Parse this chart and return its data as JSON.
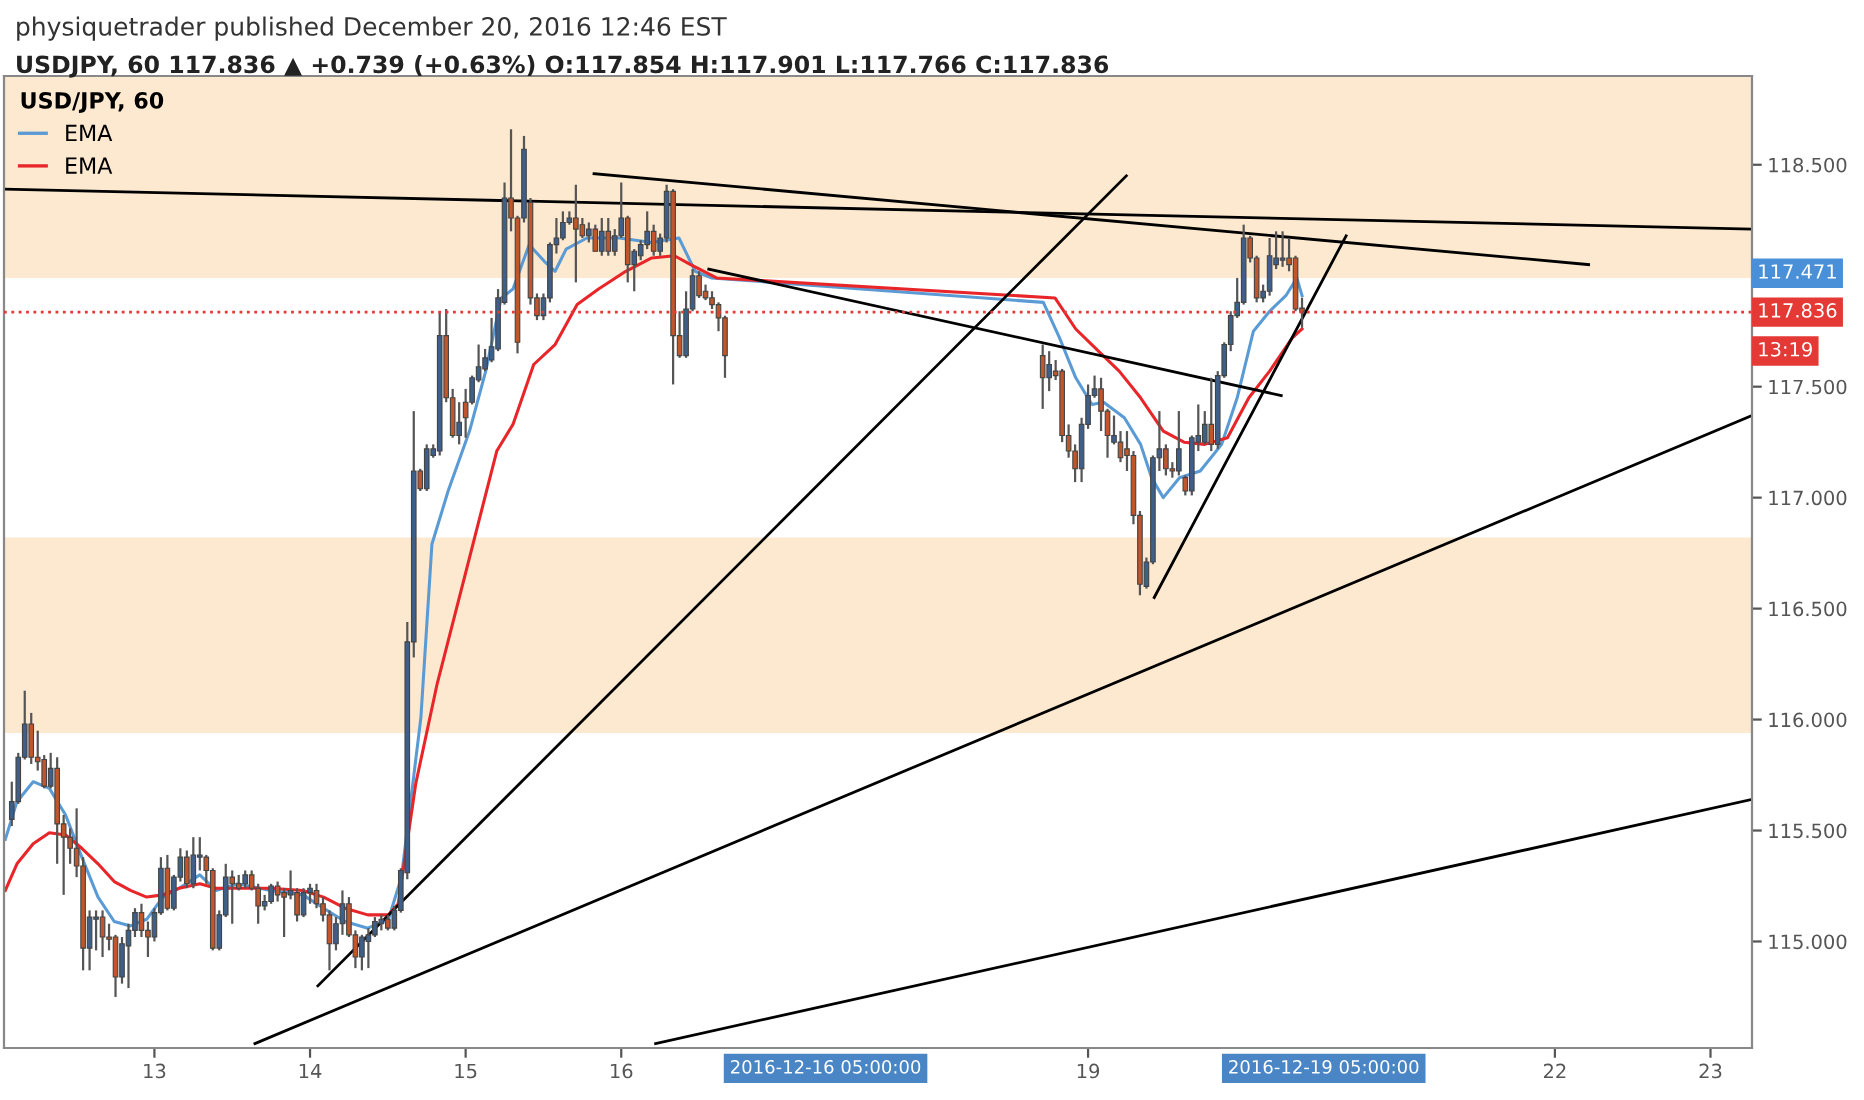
{
  "chart_data": {
    "type": "candlestick",
    "title": "physiquetrader published December 20, 2016 12:46 EST",
    "subtitle": "USDJPY, 60 117.836 ▲ +0.739 (+0.63%) O:117.854 H:117.901 L:117.766 C:117.836",
    "legend_title": "USD/JPY, 60",
    "legend": "top left",
    "grid": false,
    "xlim": [
      "2016-12-12T00:48",
      "2016-12-23T06:24"
    ],
    "ylim": [
      114.52,
      118.9
    ],
    "xticks": [
      {
        "value": "2016-12-13",
        "label": "13"
      },
      {
        "value": "2016-12-14",
        "label": "14"
      },
      {
        "value": "2016-12-15",
        "label": "15"
      },
      {
        "value": "2016-12-16",
        "label": "16"
      },
      {
        "value": "2016-12-19",
        "label": "19"
      },
      {
        "value": "2016-12-22",
        "label": "22"
      },
      {
        "value": "2016-12-23",
        "label": "23"
      }
    ],
    "yticks": [
      {
        "value": 115,
        "label": "115.000"
      },
      {
        "value": 115.5,
        "label": "115.500"
      },
      {
        "value": 116,
        "label": "116.000"
      },
      {
        "value": 116.5,
        "label": "116.500"
      },
      {
        "value": 117,
        "label": "117.000"
      },
      {
        "value": 117.5,
        "label": "117.500"
      },
      {
        "value": 118.5,
        "label": "118.500"
      }
    ],
    "x": [
      "2016-12-12T02:00",
      "2016-12-12T03:00",
      "2016-12-12T04:00",
      "2016-12-12T05:00",
      "2016-12-12T06:00",
      "2016-12-12T07:00",
      "2016-12-12T08:00",
      "2016-12-12T09:00",
      "2016-12-12T10:00",
      "2016-12-12T11:00",
      "2016-12-12T12:00",
      "2016-12-12T13:00",
      "2016-12-12T14:00",
      "2016-12-12T15:00",
      "2016-12-12T16:00",
      "2016-12-12T17:00",
      "2016-12-12T18:00",
      "2016-12-12T19:00",
      "2016-12-12T20:00",
      "2016-12-12T21:00",
      "2016-12-12T22:00",
      "2016-12-12T23:00",
      "2016-12-13T00:00",
      "2016-12-13T01:00",
      "2016-12-13T02:00",
      "2016-12-13T03:00",
      "2016-12-13T04:00",
      "2016-12-13T05:00",
      "2016-12-13T06:00",
      "2016-12-13T07:00",
      "2016-12-13T08:00",
      "2016-12-13T09:00",
      "2016-12-13T10:00",
      "2016-12-13T11:00",
      "2016-12-13T12:00",
      "2016-12-13T13:00",
      "2016-12-13T14:00",
      "2016-12-13T15:00",
      "2016-12-13T16:00",
      "2016-12-13T17:00",
      "2016-12-13T18:00",
      "2016-12-13T19:00",
      "2016-12-13T20:00",
      "2016-12-13T21:00",
      "2016-12-13T22:00",
      "2016-12-13T23:00",
      "2016-12-14T00:00",
      "2016-12-14T01:00",
      "2016-12-14T02:00",
      "2016-12-14T03:00",
      "2016-12-14T04:00",
      "2016-12-14T05:00",
      "2016-12-14T06:00",
      "2016-12-14T07:00",
      "2016-12-14T08:00",
      "2016-12-14T09:00",
      "2016-12-14T10:00",
      "2016-12-14T11:00",
      "2016-12-14T12:00",
      "2016-12-14T13:00",
      "2016-12-14T14:00",
      "2016-12-14T15:00",
      "2016-12-14T16:00",
      "2016-12-14T17:00",
      "2016-12-14T18:00",
      "2016-12-14T19:00",
      "2016-12-14T20:00",
      "2016-12-14T21:00",
      "2016-12-14T22:00",
      "2016-12-14T23:00",
      "2016-12-15T00:00",
      "2016-12-15T01:00",
      "2016-12-15T02:00",
      "2016-12-15T03:00",
      "2016-12-15T04:00",
      "2016-12-15T05:00",
      "2016-12-15T06:00",
      "2016-12-15T07:00",
      "2016-12-15T08:00",
      "2016-12-15T09:00",
      "2016-12-15T10:00",
      "2016-12-15T11:00",
      "2016-12-15T12:00",
      "2016-12-15T13:00",
      "2016-12-15T14:00",
      "2016-12-15T15:00",
      "2016-12-15T16:00",
      "2016-12-15T17:00",
      "2016-12-15T18:00",
      "2016-12-15T19:00",
      "2016-12-15T20:00",
      "2016-12-15T21:00",
      "2016-12-15T22:00",
      "2016-12-15T23:00",
      "2016-12-16T00:00",
      "2016-12-16T01:00",
      "2016-12-16T02:00",
      "2016-12-16T03:00",
      "2016-12-16T04:00",
      "2016-12-16T05:00",
      "2016-12-16T06:00",
      "2016-12-16T07:00",
      "2016-12-16T08:00",
      "2016-12-16T09:00",
      "2016-12-16T10:00",
      "2016-12-16T11:00",
      "2016-12-16T12:00",
      "2016-12-16T13:00",
      "2016-12-16T14:00",
      "2016-12-16T15:00",
      "2016-12-16T16:00",
      "2016-12-18T17:00",
      "2016-12-18T18:00",
      "2016-12-18T19:00",
      "2016-12-18T20:00",
      "2016-12-18T21:00",
      "2016-12-18T22:00",
      "2016-12-18T23:00",
      "2016-12-19T00:00",
      "2016-12-19T01:00",
      "2016-12-19T02:00",
      "2016-12-19T03:00",
      "2016-12-19T04:00",
      "2016-12-19T05:00",
      "2016-12-19T06:00",
      "2016-12-19T07:00",
      "2016-12-19T08:00",
      "2016-12-19T09:00",
      "2016-12-19T10:00",
      "2016-12-19T11:00",
      "2016-12-19T12:00",
      "2016-12-19T13:00",
      "2016-12-19T14:00",
      "2016-12-19T15:00",
      "2016-12-19T16:00",
      "2016-12-19T17:00",
      "2016-12-19T18:00",
      "2016-12-19T19:00",
      "2016-12-19T20:00",
      "2016-12-19T21:00",
      "2016-12-19T22:00",
      "2016-12-19T23:00",
      "2016-12-20T00:00",
      "2016-12-20T01:00",
      "2016-12-20T02:00",
      "2016-12-20T03:00",
      "2016-12-20T04:00",
      "2016-12-20T05:00",
      "2016-12-20T06:00",
      "2016-12-20T07:00",
      "2016-12-20T08:00",
      "2016-12-20T09:00"
    ],
    "ohlc": [
      [
        115.55,
        115.72,
        115.52,
        115.63
      ],
      [
        115.63,
        115.85,
        115.62,
        115.83
      ],
      [
        115.83,
        116.13,
        115.82,
        115.98
      ],
      [
        115.98,
        116.03,
        115.8,
        115.83
      ],
      [
        115.83,
        115.95,
        115.77,
        115.81
      ],
      [
        115.82,
        115.84,
        115.69,
        115.7
      ],
      [
        115.7,
        115.85,
        115.69,
        115.78
      ],
      [
        115.78,
        115.83,
        115.35,
        115.53
      ],
      [
        115.53,
        115.57,
        115.21,
        115.47
      ],
      [
        115.47,
        115.51,
        115.35,
        115.42
      ],
      [
        115.42,
        115.6,
        115.29,
        115.34
      ],
      [
        115.34,
        115.38,
        114.87,
        114.97
      ],
      [
        114.97,
        115.14,
        114.87,
        115.11
      ],
      [
        115.1,
        115.14,
        114.96,
        115.11
      ],
      [
        115.11,
        115.14,
        114.93,
        115.02
      ],
      [
        115.02,
        115.08,
        114.96,
        115.01
      ],
      [
        115.02,
        115.03,
        114.75,
        114.84
      ],
      [
        114.84,
        115.02,
        114.81,
        114.99
      ],
      [
        114.98,
        115.08,
        114.79,
        115.05
      ],
      [
        115.05,
        115.15,
        115.02,
        115.13
      ],
      [
        115.13,
        115.17,
        115.02,
        115.05
      ],
      [
        115.05,
        115.09,
        114.93,
        115.02
      ],
      [
        115.02,
        115.15,
        115.0,
        115.13
      ],
      [
        115.13,
        115.38,
        115.12,
        115.33
      ],
      [
        115.33,
        115.39,
        115.14,
        115.15
      ],
      [
        115.15,
        115.3,
        115.14,
        115.29
      ],
      [
        115.29,
        115.42,
        115.27,
        115.38
      ],
      [
        115.38,
        115.41,
        115.24,
        115.26
      ],
      [
        115.26,
        115.47,
        115.24,
        115.39
      ],
      [
        115.38,
        115.47,
        115.32,
        115.39
      ],
      [
        115.38,
        115.39,
        115.26,
        115.32
      ],
      [
        115.32,
        115.33,
        114.96,
        114.97
      ],
      [
        114.97,
        115.14,
        114.96,
        115.12
      ],
      [
        115.12,
        115.35,
        115.11,
        115.29
      ],
      [
        115.29,
        115.32,
        115.08,
        115.26
      ],
      [
        115.26,
        115.3,
        115.23,
        115.24
      ],
      [
        115.26,
        115.32,
        115.24,
        115.3
      ],
      [
        115.3,
        115.32,
        115.23,
        115.24
      ],
      [
        115.24,
        115.26,
        115.08,
        115.16
      ],
      [
        115.16,
        115.21,
        115.14,
        115.18
      ],
      [
        115.18,
        115.26,
        115.17,
        115.25
      ],
      [
        115.25,
        115.27,
        115.18,
        115.21
      ],
      [
        115.22,
        115.24,
        115.02,
        115.2
      ],
      [
        115.21,
        115.32,
        115.19,
        115.23
      ],
      [
        115.22,
        115.24,
        115.09,
        115.12
      ],
      [
        115.12,
        115.24,
        115.11,
        115.22
      ],
      [
        115.22,
        115.26,
        115.17,
        115.24
      ],
      [
        115.23,
        115.26,
        115.15,
        115.17
      ],
      [
        115.17,
        115.2,
        115.09,
        115.12
      ],
      [
        115.12,
        115.14,
        114.87,
        114.99
      ],
      [
        114.99,
        115.11,
        114.96,
        115.08
      ],
      [
        115.08,
        115.23,
        115.03,
        115.17
      ],
      [
        115.17,
        115.2,
        115.02,
        115.03
      ],
      [
        115.03,
        115.05,
        114.88,
        114.93
      ],
      [
        114.93,
        115.03,
        114.87,
        115.02
      ],
      [
        115.0,
        115.06,
        114.88,
        115.03
      ],
      [
        115.03,
        115.11,
        115.02,
        115.09
      ],
      [
        115.08,
        115.12,
        115.05,
        115.1
      ],
      [
        115.1,
        115.12,
        115.05,
        115.06
      ],
      [
        115.06,
        115.16,
        115.05,
        115.14
      ],
      [
        115.14,
        115.33,
        115.13,
        115.32
      ],
      [
        115.31,
        116.44,
        115.28,
        116.35
      ],
      [
        116.35,
        117.39,
        116.28,
        117.12
      ],
      [
        117.12,
        117.13,
        117.03,
        117.04
      ],
      [
        117.04,
        117.24,
        117.03,
        117.22
      ],
      [
        117.19,
        117.24,
        117.18,
        117.22
      ],
      [
        117.21,
        117.84,
        117.19,
        117.73
      ],
      [
        117.73,
        117.85,
        117.43,
        117.45
      ],
      [
        117.45,
        117.49,
        117.27,
        117.28
      ],
      [
        117.28,
        117.43,
        117.24,
        117.34
      ],
      [
        117.43,
        117.49,
        117.27,
        117.36
      ],
      [
        117.43,
        117.55,
        117.42,
        117.54
      ],
      [
        117.53,
        117.69,
        117.52,
        117.59
      ],
      [
        117.58,
        117.67,
        117.57,
        117.63
      ],
      [
        117.62,
        117.81,
        117.61,
        117.68
      ],
      [
        117.67,
        117.94,
        117.66,
        117.9
      ],
      [
        117.88,
        118.42,
        117.87,
        118.35
      ],
      [
        118.35,
        118.66,
        118.2,
        118.26
      ],
      [
        118.26,
        118.27,
        117.65,
        117.7
      ],
      [
        118.26,
        118.63,
        118.24,
        118.57
      ],
      [
        118.33,
        118.35,
        117.87,
        117.9
      ],
      [
        117.9,
        117.92,
        117.8,
        117.82
      ],
      [
        117.82,
        117.92,
        117.8,
        117.9
      ],
      [
        117.9,
        118.15,
        117.88,
        118.14
      ],
      [
        118.14,
        118.26,
        118.1,
        118.17
      ],
      [
        118.17,
        118.29,
        118.16,
        118.24
      ],
      [
        118.24,
        118.29,
        118.23,
        118.26
      ],
      [
        118.26,
        118.41,
        117.97,
        118.21
      ],
      [
        118.23,
        118.26,
        118.17,
        118.18
      ],
      [
        118.18,
        118.24,
        118.15,
        118.21
      ],
      [
        118.21,
        118.23,
        118.11,
        118.11
      ],
      [
        118.11,
        118.26,
        118.09,
        118.2
      ],
      [
        118.2,
        118.26,
        118.09,
        118.11
      ],
      [
        118.11,
        118.21,
        118.09,
        118.18
      ],
      [
        118.18,
        118.42,
        118.17,
        118.26
      ],
      [
        118.26,
        118.27,
        117.97,
        118.05
      ],
      [
        118.05,
        118.12,
        117.93,
        118.11
      ],
      [
        118.09,
        118.16,
        118.07,
        118.14
      ],
      [
        118.14,
        118.29,
        118.12,
        118.2
      ],
      [
        118.2,
        118.23,
        118.09,
        118.11
      ],
      [
        118.11,
        118.19,
        118.09,
        118.17
      ],
      [
        118.17,
        118.41,
        118.15,
        118.38
      ],
      [
        118.38,
        118.39,
        117.51,
        117.73
      ],
      [
        117.73,
        117.84,
        117.63,
        117.64
      ],
      [
        117.64,
        117.93,
        117.63,
        117.85
      ],
      [
        117.85,
        118.03,
        117.84,
        118.0
      ],
      [
        118.0,
        118.02,
        117.9,
        117.91
      ],
      [
        117.93,
        117.96,
        117.89,
        117.9
      ],
      [
        117.9,
        117.93,
        117.85,
        117.87
      ],
      [
        117.87,
        117.88,
        117.75,
        117.81
      ],
      [
        117.81,
        117.82,
        117.54,
        117.64
      ],
      [
        117.64,
        117.69,
        117.4,
        117.54
      ],
      [
        117.54,
        117.66,
        117.48,
        117.6
      ],
      [
        117.57,
        117.62,
        117.53,
        117.55
      ],
      [
        117.57,
        117.58,
        117.25,
        117.28
      ],
      [
        117.28,
        117.33,
        117.18,
        117.21
      ],
      [
        117.21,
        117.24,
        117.07,
        117.13
      ],
      [
        117.13,
        117.36,
        117.07,
        117.33
      ],
      [
        117.33,
        117.51,
        117.31,
        117.46
      ],
      [
        117.46,
        117.55,
        117.45,
        117.49
      ],
      [
        117.49,
        117.54,
        117.3,
        117.39
      ],
      [
        117.39,
        117.4,
        117.18,
        117.28
      ],
      [
        117.25,
        117.37,
        117.24,
        117.28
      ],
      [
        117.25,
        117.3,
        117.16,
        117.18
      ],
      [
        117.22,
        117.3,
        117.12,
        117.19
      ],
      [
        117.19,
        117.21,
        116.88,
        116.92
      ],
      [
        116.92,
        116.94,
        116.56,
        116.61
      ],
      [
        116.6,
        116.73,
        116.59,
        116.71
      ],
      [
        116.71,
        117.19,
        116.7,
        117.18
      ],
      [
        117.18,
        117.39,
        117.12,
        117.22
      ],
      [
        117.22,
        117.24,
        117.1,
        117.13
      ],
      [
        117.13,
        117.16,
        117.09,
        117.12
      ],
      [
        117.12,
        117.39,
        117.1,
        117.22
      ],
      [
        117.09,
        117.1,
        117.01,
        117.03
      ],
      [
        117.03,
        117.28,
        117.01,
        117.27
      ],
      [
        117.25,
        117.42,
        117.21,
        117.28
      ],
      [
        117.25,
        117.39,
        117.24,
        117.33
      ],
      [
        117.33,
        117.54,
        117.21,
        117.24
      ],
      [
        117.24,
        117.57,
        117.22,
        117.55
      ],
      [
        117.55,
        117.7,
        117.54,
        117.69
      ],
      [
        117.69,
        117.84,
        117.66,
        117.82
      ],
      [
        117.82,
        117.99,
        117.81,
        117.88
      ],
      [
        117.88,
        118.23,
        117.87,
        118.17
      ],
      [
        118.17,
        118.18,
        118.06,
        118.08
      ],
      [
        118.08,
        118.09,
        117.88,
        117.9
      ],
      [
        117.9,
        117.96,
        117.88,
        117.93
      ],
      [
        117.93,
        118.17,
        117.91,
        118.09
      ],
      [
        118.05,
        118.2,
        118.03,
        118.08
      ],
      [
        118.07,
        118.2,
        118.04,
        118.08
      ],
      [
        118.08,
        118.17,
        118.02,
        118.05
      ],
      [
        118.08,
        118.09,
        117.84,
        117.85
      ],
      [
        117.854,
        117.901,
        117.766,
        117.836
      ]
    ],
    "series": [
      {
        "name": "EMA",
        "type": "line",
        "color": "#5b9bd5",
        "x": [
          "2016-12-12T01:00",
          "2016-12-12T02:48",
          "2016-12-12T05:18",
          "2016-12-12T07:48",
          "2016-12-12T10:18",
          "2016-12-12T12:48",
          "2016-12-12T15:18",
          "2016-12-12T17:48",
          "2016-12-12T20:18",
          "2016-12-12T22:48",
          "2016-12-13T01:18",
          "2016-12-13T03:48",
          "2016-12-13T07:00",
          "2016-12-13T09:30",
          "2016-12-13T12:54",
          "2016-12-13T17:54",
          "2016-12-13T22:54",
          "2016-12-14T02:06",
          "2016-12-14T05:24",
          "2016-12-14T08:54",
          "2016-12-14T12:06",
          "2016-12-14T14:06",
          "2016-12-14T17:06",
          "2016-12-14T18:48",
          "2016-12-14T21:18",
          "2016-12-15T00:36",
          "2016-12-15T03:06",
          "2016-12-15T05:30",
          "2016-12-15T07:18",
          "2016-12-15T09:48",
          "2016-12-15T12:18",
          "2016-12-15T13:48",
          "2016-12-15T15:30",
          "2016-12-15T18:42",
          "2016-12-15T23:42",
          "2016-12-16T04:42",
          "2016-12-16T08:54",
          "2016-12-16T11:24",
          "2016-12-16T13:54",
          "2016-12-18T17:06",
          "2016-12-18T19:36",
          "2016-12-18T22:06",
          "2016-12-19T00:36",
          "2016-12-19T02:24",
          "2016-12-19T05:36",
          "2016-12-19T08:06",
          "2016-12-19T09:48",
          "2016-12-19T11:36",
          "2016-12-19T14:06",
          "2016-12-19T17:18",
          "2016-12-19T20:36",
          "2016-12-19T23:00",
          "2016-12-20T01:30",
          "2016-12-20T04:00",
          "2016-12-20T06:30",
          "2016-12-20T08:12",
          "2016-12-20T09:00"
        ],
        "values": [
          115.46,
          115.63,
          115.72,
          115.69,
          115.57,
          115.38,
          115.2,
          115.09,
          115.07,
          115.1,
          115.2,
          115.24,
          115.3,
          115.23,
          115.26,
          115.23,
          115.21,
          115.15,
          115.09,
          115.06,
          115.1,
          115.29,
          116.01,
          116.79,
          117.03,
          117.3,
          117.57,
          117.9,
          117.94,
          118.14,
          118.06,
          118.02,
          118.12,
          118.17,
          118.17,
          118.15,
          118.17,
          118.02,
          117.99,
          117.88,
          117.72,
          117.54,
          117.42,
          117.43,
          117.36,
          117.24,
          117.09,
          117.0,
          117.09,
          117.12,
          117.24,
          117.45,
          117.75,
          117.84,
          117.91,
          117.99,
          117.91
        ]
      },
      {
        "name": "EMA",
        "type": "line",
        "color": "#e8262a",
        "x": [
          "2016-12-12T01:00",
          "2016-12-12T02:48",
          "2016-12-12T05:18",
          "2016-12-12T07:48",
          "2016-12-12T10:18",
          "2016-12-12T12:48",
          "2016-12-12T15:18",
          "2016-12-12T17:48",
          "2016-12-12T20:18",
          "2016-12-12T22:48",
          "2016-12-13T01:18",
          "2016-12-13T03:48",
          "2016-12-13T07:00",
          "2016-12-13T09:30",
          "2016-12-13T12:54",
          "2016-12-13T17:54",
          "2016-12-13T22:54",
          "2016-12-14T02:06",
          "2016-12-14T05:24",
          "2016-12-14T08:54",
          "2016-12-14T12:06",
          "2016-12-14T13:36",
          "2016-12-14T16:18",
          "2016-12-14T19:36",
          "2016-12-15T00:36",
          "2016-12-15T04:48",
          "2016-12-15T07:18",
          "2016-12-15T10:30",
          "2016-12-15T13:48",
          "2016-12-15T17:12",
          "2016-12-15T20:30",
          "2016-12-16T00:42",
          "2016-12-16T04:42",
          "2016-12-16T08:12",
          "2016-12-16T10:42",
          "2016-12-16T14:42",
          "2016-12-18T18:54",
          "2016-12-18T22:06",
          "2016-12-19T01:36",
          "2016-12-19T04:48",
          "2016-12-19T08:06",
          "2016-12-19T11:36",
          "2016-12-19T14:48",
          "2016-12-19T18:00",
          "2016-12-19T21:30",
          "2016-12-20T00:48",
          "2016-12-20T04:00",
          "2016-12-20T07:30",
          "2016-12-20T09:00"
        ],
        "values": [
          115.23,
          115.35,
          115.44,
          115.49,
          115.48,
          115.42,
          115.35,
          115.27,
          115.23,
          115.2,
          115.21,
          115.24,
          115.26,
          115.24,
          115.24,
          115.24,
          115.23,
          115.2,
          115.15,
          115.12,
          115.12,
          115.17,
          115.71,
          116.16,
          116.73,
          117.21,
          117.33,
          117.6,
          117.69,
          117.87,
          117.94,
          118.02,
          118.08,
          118.09,
          118.05,
          117.99,
          117.9,
          117.76,
          117.66,
          117.57,
          117.45,
          117.3,
          117.25,
          117.24,
          117.27,
          117.45,
          117.57,
          117.72,
          117.76
        ]
      },
      {
        "type": "line",
        "color": "#000000",
        "x": [
          "2016-12-12T00:48",
          "2016-12-23T06:24"
        ],
        "values": [
          118.39,
          118.21
        ]
      },
      {
        "type": "line",
        "color": "#000000",
        "x": [
          "2016-12-15T19:48",
          "2016-12-22T05:12"
        ],
        "values": [
          118.46,
          118.05
        ]
      },
      {
        "type": "line",
        "color": "#000000",
        "x": [
          "2016-12-14T01:12",
          "2016-12-19T05:54"
        ],
        "values": [
          114.8,
          118.45
        ]
      },
      {
        "type": "line",
        "color": "#000000",
        "x": [
          "2016-12-13T15:30",
          "2016-12-23T06:24"
        ],
        "values": [
          114.54,
          117.37
        ]
      },
      {
        "type": "line",
        "color": "#000000",
        "x": [
          "2016-12-16T05:18",
          "2016-12-23T06:24"
        ],
        "values": [
          114.54,
          115.64
        ]
      },
      {
        "type": "line",
        "color": "#000000",
        "x": [
          "2016-12-16T13:30",
          "2016-12-20T05:48"
        ],
        "values": [
          118.03,
          117.46
        ]
      },
      {
        "type": "line",
        "color": "#000000",
        "x": [
          "2016-12-19T10:12",
          "2016-12-20T15:48"
        ],
        "values": [
          116.55,
          118.18
        ]
      }
    ],
    "bands": [
      {
        "axis": "y",
        "from": 117.99,
        "to": 118.9,
        "color": "#fce9cf"
      },
      {
        "axis": "y",
        "from": 115.94,
        "to": 116.82,
        "color": "#fce9cf"
      }
    ],
    "ref_lines": [
      {
        "axis": "y",
        "value": 117.836,
        "label": "117.836",
        "color": "#e53935",
        "line_style": "dotted"
      }
    ],
    "annotations": [
      "117.471",
      "13:19",
      "2016-12-16 05:00:00",
      "2016-12-19 05:00:00"
    ]
  }
}
